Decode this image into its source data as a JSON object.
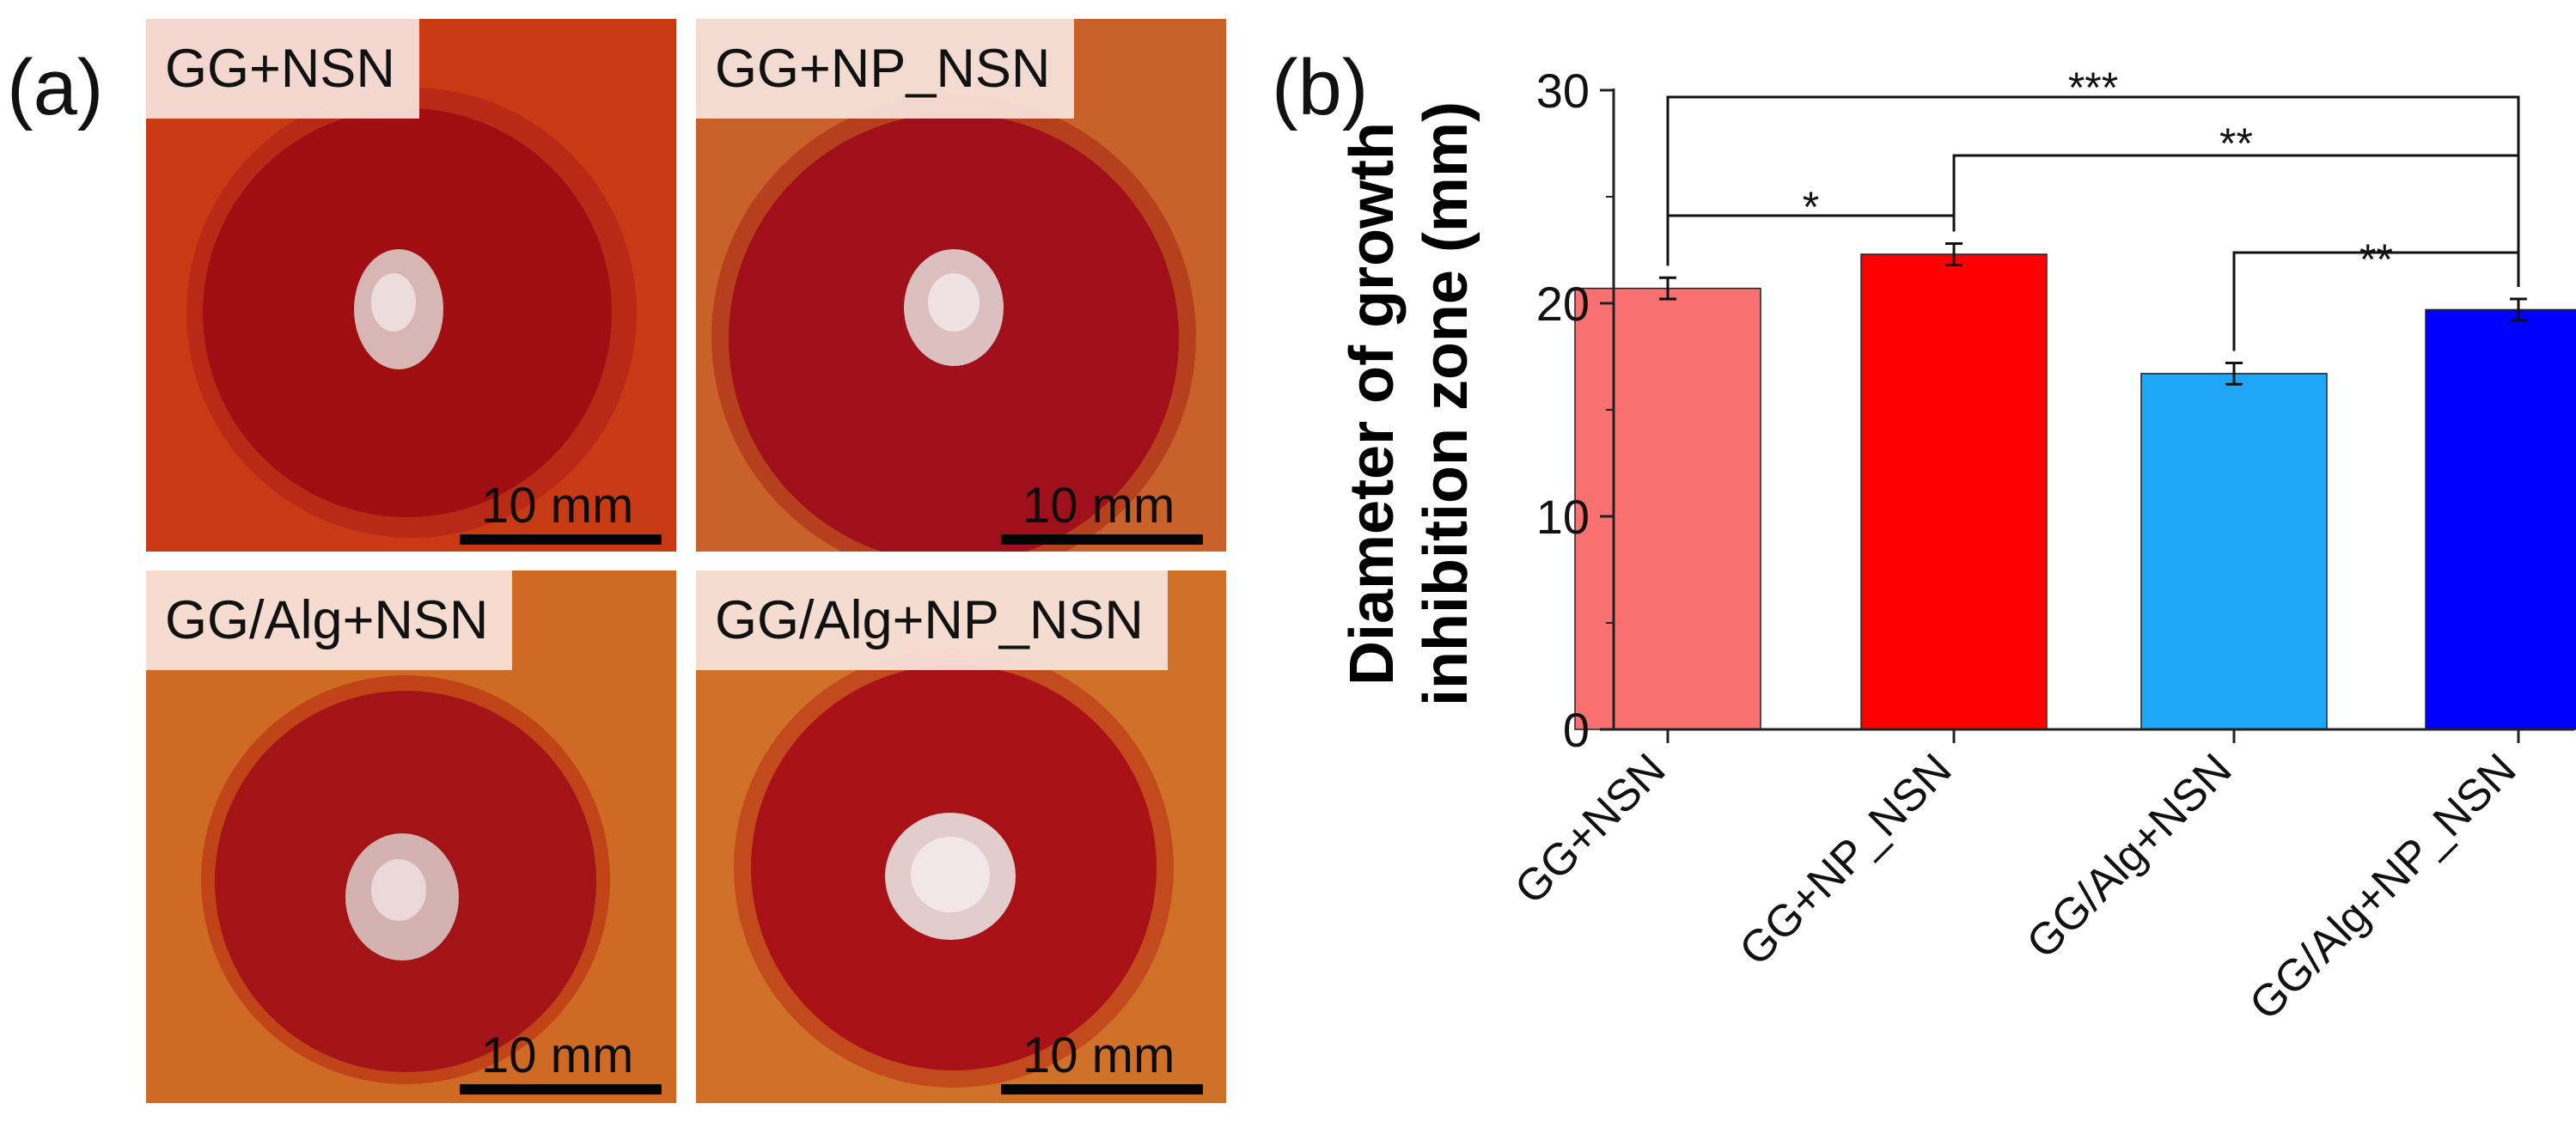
{
  "panels": {
    "a_label": "(a)",
    "b_label": "(b)"
  },
  "photos": [
    {
      "label": "GG+NSN",
      "scale_text": "10 mm",
      "background": "#c83a14",
      "zone": "#a00e12",
      "zone_rim": "#b82a16"
    },
    {
      "label": "GG+NP_NSN",
      "scale_text": "10 mm",
      "background": "#c9612a",
      "zone": "#a0101a",
      "zone_rim": "#b6401e"
    },
    {
      "label": "GG/Alg+NSN",
      "scale_text": "10 mm",
      "background": "#cf6a24",
      "zone": "#a31416",
      "zone_rim": "#c04418"
    },
    {
      "label": "GG/Alg+NP_NSN",
      "scale_text": "10 mm",
      "background": "#d0712a",
      "zone": "#a81216",
      "zone_rim": "#c24a1c"
    }
  ],
  "chart_data": {
    "type": "bar",
    "ylabel_line1": "Diameter of growth",
    "ylabel_line2": "inhibition zone (mm)",
    "ylim": [
      0,
      30
    ],
    "yticks": [
      "0",
      "10",
      "20",
      "30"
    ],
    "categories": [
      "GG+NSN",
      "GG+NP_NSN",
      "GG/Alg+NSN",
      "GG/Alg+NP_NSN"
    ],
    "values": [
      20.7,
      22.3,
      16.7,
      19.7
    ],
    "errors": [
      0.5,
      0.5,
      0.5,
      0.5
    ],
    "colors": [
      "#f87070",
      "#ff0000",
      "#1fa6f7",
      "#0000ff"
    ],
    "significance": [
      {
        "from": 0,
        "to": 1,
        "label": "*"
      },
      {
        "from": 1,
        "to": 3,
        "label": "**"
      },
      {
        "from": 2,
        "to": 3,
        "label": "**"
      },
      {
        "from": 0,
        "to": 3,
        "label": "***"
      }
    ]
  }
}
